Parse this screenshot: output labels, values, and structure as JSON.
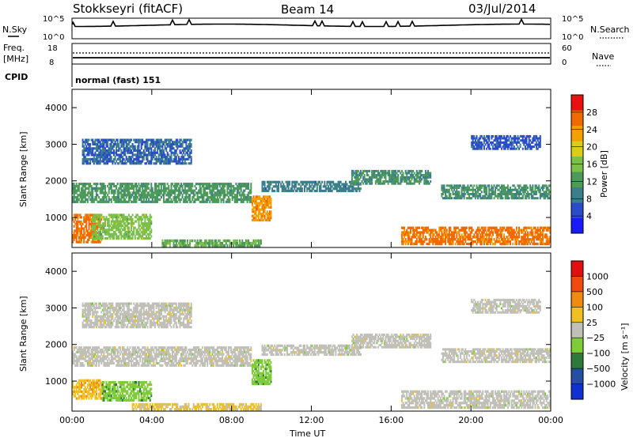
{
  "header": {
    "station": "Stokkseyri (fitACF)",
    "beam": "Beam 14",
    "date": "03/Jul/2014"
  },
  "noise_panel": {
    "left_label": "N.Sky",
    "right_label": "N.Search",
    "left_ticks": [
      "10^5",
      "10^0"
    ],
    "right_ticks": [
      "10^5",
      "10^0"
    ]
  },
  "freq_panel": {
    "left_label_line1": "Freq.",
    "left_label_line2": "[MHz]",
    "left_ticks": [
      "18",
      "8"
    ],
    "right_label": "Nave",
    "right_ticks": [
      "60",
      "0"
    ]
  },
  "cpid": {
    "label": "CPID",
    "mode": "normal (fast) 151"
  },
  "colors": {
    "power_scale": [
      "#1a1aff",
      "#2a4cc8",
      "#3c7f8c",
      "#4d9a5a",
      "#7cc04a",
      "#d9cc1a",
      "#f5a000",
      "#f06a00",
      "#e81010"
    ],
    "velocity_scale": [
      "#1030d0",
      "#2550a0",
      "#2d7a3a",
      "#7fcc3a",
      "#c0c0b8",
      "#f0c020",
      "#f08a10",
      "#f04a10",
      "#e01010"
    ]
  },
  "chart_data": [
    {
      "type": "heatmap",
      "name": "power",
      "ylabel": "Slant Range [km]",
      "xlabel": "",
      "ylim": [
        180,
        4500
      ],
      "y_ticks": [
        "1000",
        "2000",
        "3000",
        "4000"
      ],
      "x_tick_labels": [
        "",
        "",
        "",
        "",
        "",
        "",
        ""
      ],
      "colorbar": {
        "label": "Power [dB]",
        "tick_labels": [
          "4",
          "8",
          "12",
          "16",
          "20",
          "24",
          "28"
        ],
        "range": [
          0,
          32
        ]
      },
      "bands": [
        {
          "t0": 0.0,
          "t1": 1.5,
          "r0": 300,
          "r1": 1100,
          "v": 26
        },
        {
          "t0": 1.0,
          "t1": 4.0,
          "r0": 400,
          "r1": 1100,
          "v": 16
        },
        {
          "t0": 0.0,
          "t1": 9.0,
          "r0": 1400,
          "r1": 1950,
          "v": 12
        },
        {
          "t0": 0.5,
          "t1": 6.0,
          "r0": 2450,
          "r1": 3150,
          "v": 7
        },
        {
          "t0": 4.5,
          "t1": 9.5,
          "r0": 200,
          "r1": 400,
          "v": 14
        },
        {
          "t0": 9.0,
          "t1": 10.0,
          "r0": 900,
          "r1": 1600,
          "v": 24
        },
        {
          "t0": 9.5,
          "t1": 14.5,
          "r0": 1700,
          "r1": 2000,
          "v": 9
        },
        {
          "t0": 14.0,
          "t1": 18.0,
          "r0": 1900,
          "r1": 2300,
          "v": 11
        },
        {
          "t0": 16.5,
          "t1": 24.0,
          "r0": 250,
          "r1": 750,
          "v": 26
        },
        {
          "t0": 18.5,
          "t1": 24.0,
          "r0": 1500,
          "r1": 1900,
          "v": 11
        },
        {
          "t0": 20.0,
          "t1": 23.5,
          "r0": 2850,
          "r1": 3250,
          "v": 6
        }
      ]
    },
    {
      "type": "heatmap",
      "name": "velocity",
      "ylabel": "Slant Range [km]",
      "xlabel": "Time UT",
      "ylim": [
        180,
        4500
      ],
      "y_ticks": [
        "1000",
        "2000",
        "3000",
        "4000"
      ],
      "x_tick_labels": [
        "00:00",
        "04:00",
        "08:00",
        "12:00",
        "16:00",
        "20:00",
        "00:00"
      ],
      "colorbar": {
        "label": "Velocity [m s⁻¹]",
        "tick_labels": [
          "1000",
          "500",
          "100",
          "25",
          "−25",
          "−100",
          "−500",
          "−1000"
        ],
        "range": [
          -1200,
          1200
        ]
      },
      "bands": [
        {
          "t0": 0.0,
          "t1": 1.5,
          "r0": 500,
          "r1": 1050,
          "v": 300
        },
        {
          "t0": 1.5,
          "t1": 4.0,
          "r0": 450,
          "r1": 1000,
          "v": -300
        },
        {
          "t0": 0.0,
          "t1": 9.0,
          "r0": 1400,
          "r1": 1950,
          "v": 0
        },
        {
          "t0": 0.5,
          "t1": 6.0,
          "r0": 2450,
          "r1": 3150,
          "v": 0
        },
        {
          "t0": 3.0,
          "t1": 9.5,
          "r0": 200,
          "r1": 400,
          "v": 200
        },
        {
          "t0": 9.0,
          "t1": 10.0,
          "r0": 900,
          "r1": 1600,
          "v": -300
        },
        {
          "t0": 9.5,
          "t1": 14.5,
          "r0": 1700,
          "r1": 2000,
          "v": 0
        },
        {
          "t0": 14.0,
          "t1": 18.0,
          "r0": 1900,
          "r1": 2300,
          "v": 0
        },
        {
          "t0": 16.5,
          "t1": 24.0,
          "r0": 250,
          "r1": 750,
          "v": 0
        },
        {
          "t0": 18.5,
          "t1": 24.0,
          "r0": 1500,
          "r1": 1900,
          "v": 0
        },
        {
          "t0": 20.0,
          "t1": 23.5,
          "r0": 2850,
          "r1": 3250,
          "v": 0
        }
      ]
    }
  ]
}
